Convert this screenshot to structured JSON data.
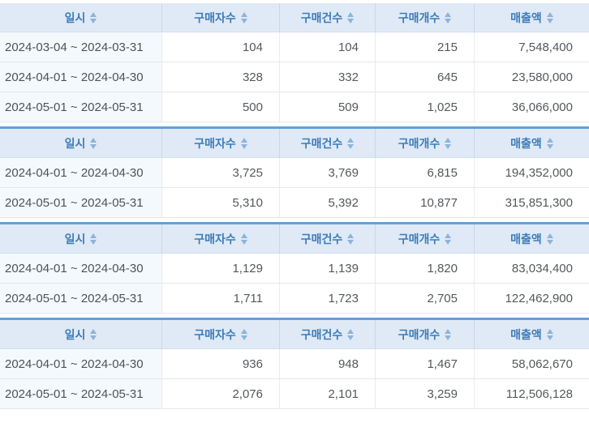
{
  "page": {
    "background": "#ffffff"
  },
  "colors": {
    "top_bar": "#64a0d6",
    "header_bg": "#dfeaf6",
    "header_text": "#3d7bb9",
    "header_cell_border": "#c6d8ea",
    "sort_arrow": "#8db4da",
    "date_cell_bg": "#f4f9fd",
    "data_text": "#54585d"
  },
  "columns": [
    {
      "key": "date",
      "label": "일시",
      "sortable": true
    },
    {
      "key": "buyers",
      "label": "구매자수",
      "sortable": true
    },
    {
      "key": "purchases",
      "label": "구매건수",
      "sortable": true
    },
    {
      "key": "quantity",
      "label": "구매개수",
      "sortable": true
    },
    {
      "key": "sales",
      "label": "매출액",
      "sortable": true
    }
  ],
  "tables": [
    {
      "name": "sales-summary-table-1",
      "rows": [
        [
          "2024-03-04 ~ 2024-03-31",
          "104",
          "104",
          "215",
          "7,548,400"
        ],
        [
          "2024-04-01 ~ 2024-04-30",
          "328",
          "332",
          "645",
          "23,580,000"
        ],
        [
          "2024-05-01 ~ 2024-05-31",
          "500",
          "509",
          "1,025",
          "36,066,000"
        ]
      ]
    },
    {
      "name": "sales-summary-table-2",
      "rows": [
        [
          "2024-04-01 ~ 2024-04-30",
          "3,725",
          "3,769",
          "6,815",
          "194,352,000"
        ],
        [
          "2024-05-01 ~ 2024-05-31",
          "5,310",
          "5,392",
          "10,877",
          "315,851,300"
        ]
      ]
    },
    {
      "name": "sales-summary-table-3",
      "rows": [
        [
          "2024-04-01 ~ 2024-04-30",
          "1,129",
          "1,139",
          "1,820",
          "83,034,400"
        ],
        [
          "2024-05-01 ~ 2024-05-31",
          "1,711",
          "1,723",
          "2,705",
          "122,462,900"
        ]
      ]
    },
    {
      "name": "sales-summary-table-4",
      "rows": [
        [
          "2024-04-01 ~ 2024-04-30",
          "936",
          "948",
          "1,467",
          "58,062,670"
        ],
        [
          "2024-05-01 ~ 2024-05-31",
          "2,076",
          "2,101",
          "3,259",
          "112,506,128"
        ]
      ]
    }
  ]
}
